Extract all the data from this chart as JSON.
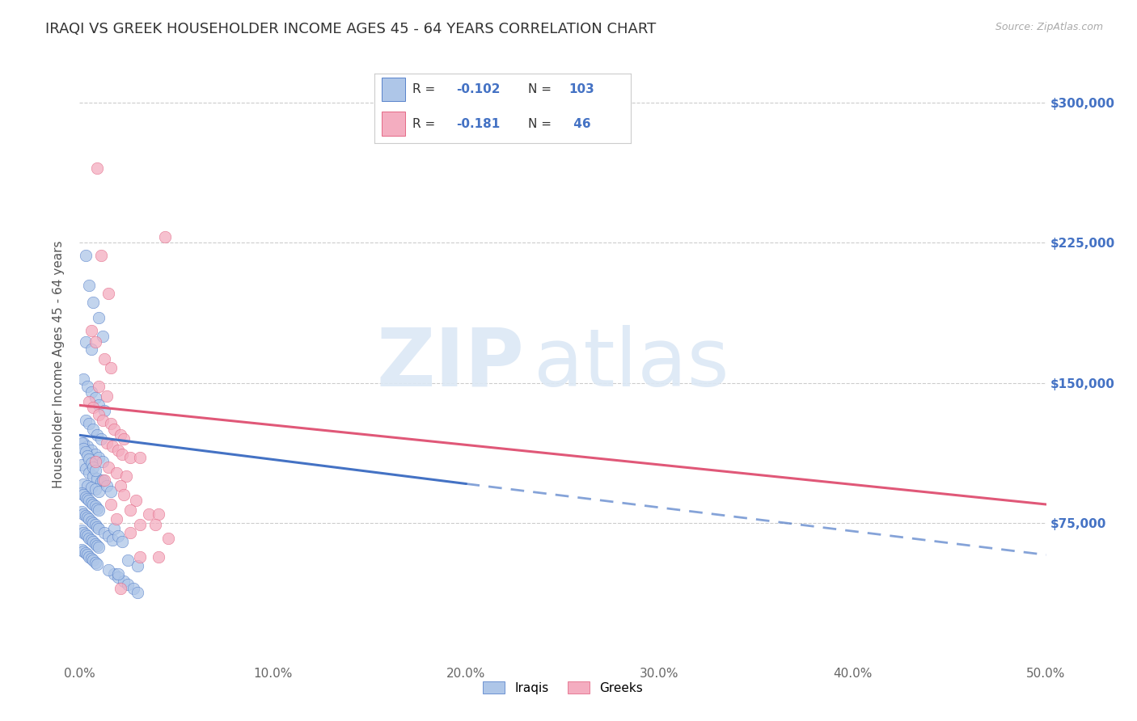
{
  "title": "IRAQI VS GREEK HOUSEHOLDER INCOME AGES 45 - 64 YEARS CORRELATION CHART",
  "source": "Source: ZipAtlas.com",
  "ylabel": "Householder Income Ages 45 - 64 years",
  "xlim": [
    0.0,
    0.5
  ],
  "ylim": [
    0,
    320000
  ],
  "ytick_labels_right": [
    "$75,000",
    "$150,000",
    "$225,000",
    "$300,000"
  ],
  "ytick_values_right": [
    75000,
    150000,
    225000,
    300000
  ],
  "iraqi_color": "#aec6e8",
  "greek_color": "#f4adc0",
  "trendline_iraqi_color": "#4472c4",
  "trendline_greek_color": "#e05878",
  "watermark_zip": "ZIP",
  "watermark_atlas": "atlas",
  "background_color": "#ffffff",
  "iraqi_points": [
    [
      0.003,
      218000
    ],
    [
      0.005,
      202000
    ],
    [
      0.007,
      193000
    ],
    [
      0.003,
      172000
    ],
    [
      0.006,
      168000
    ],
    [
      0.01,
      185000
    ],
    [
      0.012,
      175000
    ],
    [
      0.002,
      152000
    ],
    [
      0.004,
      148000
    ],
    [
      0.006,
      145000
    ],
    [
      0.008,
      142000
    ],
    [
      0.01,
      138000
    ],
    [
      0.013,
      135000
    ],
    [
      0.003,
      130000
    ],
    [
      0.005,
      128000
    ],
    [
      0.007,
      125000
    ],
    [
      0.009,
      122000
    ],
    [
      0.011,
      120000
    ],
    [
      0.002,
      118000
    ],
    [
      0.004,
      116000
    ],
    [
      0.006,
      114000
    ],
    [
      0.008,
      112000
    ],
    [
      0.01,
      110000
    ],
    [
      0.012,
      108000
    ],
    [
      0.001,
      106000
    ],
    [
      0.003,
      104000
    ],
    [
      0.005,
      102000
    ],
    [
      0.007,
      100000
    ],
    [
      0.009,
      99000
    ],
    [
      0.011,
      97000
    ],
    [
      0.002,
      96000
    ],
    [
      0.004,
      95000
    ],
    [
      0.006,
      94000
    ],
    [
      0.008,
      93000
    ],
    [
      0.01,
      92000
    ],
    [
      0.001,
      118000
    ],
    [
      0.002,
      115000
    ],
    [
      0.003,
      113000
    ],
    [
      0.004,
      111000
    ],
    [
      0.005,
      109000
    ],
    [
      0.006,
      107000
    ],
    [
      0.007,
      105000
    ],
    [
      0.008,
      103000
    ],
    [
      0.001,
      91000
    ],
    [
      0.002,
      90000
    ],
    [
      0.003,
      89000
    ],
    [
      0.004,
      88000
    ],
    [
      0.005,
      87000
    ],
    [
      0.006,
      86000
    ],
    [
      0.007,
      85000
    ],
    [
      0.008,
      84000
    ],
    [
      0.009,
      83000
    ],
    [
      0.01,
      82000
    ],
    [
      0.001,
      81000
    ],
    [
      0.002,
      80000
    ],
    [
      0.003,
      79000
    ],
    [
      0.004,
      78000
    ],
    [
      0.005,
      77000
    ],
    [
      0.006,
      76000
    ],
    [
      0.007,
      75000
    ],
    [
      0.008,
      74000
    ],
    [
      0.009,
      73000
    ],
    [
      0.01,
      72000
    ],
    [
      0.001,
      71000
    ],
    [
      0.002,
      70000
    ],
    [
      0.003,
      69000
    ],
    [
      0.004,
      68000
    ],
    [
      0.005,
      67000
    ],
    [
      0.006,
      66000
    ],
    [
      0.007,
      65000
    ],
    [
      0.008,
      64000
    ],
    [
      0.009,
      63000
    ],
    [
      0.01,
      62000
    ],
    [
      0.001,
      61000
    ],
    [
      0.002,
      60000
    ],
    [
      0.003,
      59000
    ],
    [
      0.004,
      58000
    ],
    [
      0.005,
      57000
    ],
    [
      0.006,
      56000
    ],
    [
      0.007,
      55000
    ],
    [
      0.008,
      54000
    ],
    [
      0.009,
      53000
    ],
    [
      0.012,
      98000
    ],
    [
      0.014,
      95000
    ],
    [
      0.016,
      92000
    ],
    [
      0.013,
      70000
    ],
    [
      0.015,
      68000
    ],
    [
      0.017,
      66000
    ],
    [
      0.018,
      72000
    ],
    [
      0.02,
      68000
    ],
    [
      0.022,
      65000
    ],
    [
      0.018,
      48000
    ],
    [
      0.02,
      46000
    ],
    [
      0.023,
      44000
    ],
    [
      0.025,
      42000
    ],
    [
      0.028,
      40000
    ],
    [
      0.03,
      38000
    ],
    [
      0.015,
      50000
    ],
    [
      0.02,
      48000
    ],
    [
      0.025,
      55000
    ],
    [
      0.03,
      52000
    ]
  ],
  "greek_points": [
    [
      0.009,
      265000
    ],
    [
      0.011,
      218000
    ],
    [
      0.015,
      198000
    ],
    [
      0.006,
      178000
    ],
    [
      0.008,
      172000
    ],
    [
      0.013,
      163000
    ],
    [
      0.016,
      158000
    ],
    [
      0.01,
      148000
    ],
    [
      0.014,
      143000
    ],
    [
      0.005,
      140000
    ],
    [
      0.007,
      137000
    ],
    [
      0.01,
      133000
    ],
    [
      0.012,
      130000
    ],
    [
      0.016,
      128000
    ],
    [
      0.018,
      125000
    ],
    [
      0.021,
      122000
    ],
    [
      0.023,
      120000
    ],
    [
      0.014,
      118000
    ],
    [
      0.017,
      116000
    ],
    [
      0.02,
      114000
    ],
    [
      0.022,
      112000
    ],
    [
      0.026,
      110000
    ],
    [
      0.008,
      108000
    ],
    [
      0.015,
      105000
    ],
    [
      0.019,
      102000
    ],
    [
      0.024,
      100000
    ],
    [
      0.013,
      98000
    ],
    [
      0.021,
      95000
    ],
    [
      0.031,
      110000
    ],
    [
      0.023,
      90000
    ],
    [
      0.029,
      87000
    ],
    [
      0.016,
      85000
    ],
    [
      0.026,
      82000
    ],
    [
      0.036,
      80000
    ],
    [
      0.041,
      80000
    ],
    [
      0.019,
      77000
    ],
    [
      0.031,
      74000
    ],
    [
      0.039,
      74000
    ],
    [
      0.026,
      70000
    ],
    [
      0.046,
      67000
    ],
    [
      0.021,
      40000
    ],
    [
      0.031,
      57000
    ],
    [
      0.041,
      57000
    ],
    [
      0.044,
      228000
    ]
  ],
  "trendline_iraqi_solid": [
    [
      0.0,
      122000
    ],
    [
      0.2,
      96000
    ]
  ],
  "trendline_iraqi_dash": [
    [
      0.2,
      96000
    ],
    [
      0.5,
      58000
    ]
  ],
  "trendline_greek": [
    [
      0.0,
      138000
    ],
    [
      0.5,
      85000
    ]
  ]
}
